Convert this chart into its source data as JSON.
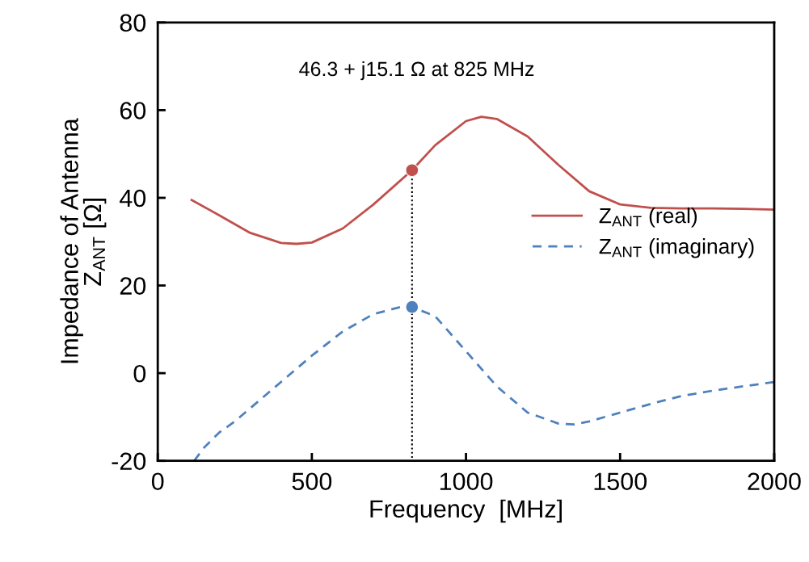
{
  "chart_data": {
    "type": "line",
    "xlabel": "Frequency  [MHz]",
    "ylabel": "Impedance of Antenna\nZ$_{ANT}$ [Ω]",
    "xlim": [
      0,
      2000
    ],
    "xticks": [
      0,
      500,
      1000,
      1500,
      2000
    ],
    "ylim": [
      -20,
      80
    ],
    "yticks": [
      -20,
      0,
      20,
      40,
      60,
      80
    ],
    "grid": false,
    "legend": "right",
    "marker": "none",
    "annotations": [
      "46.3 + j15.1 Ω at 825 MHz"
    ],
    "series": [
      {
        "name": "Z$_{ANT}$ (real)",
        "color": "#c0504d",
        "line_style": "solid",
        "x": [
          110,
          200,
          300,
          400,
          450,
          500,
          600,
          700,
          825,
          900,
          1000,
          1050,
          1100,
          1200,
          1300,
          1400,
          1500,
          1600,
          1700,
          1800,
          1900,
          2000
        ],
        "values": [
          39.5,
          36,
          32,
          29.7,
          29.5,
          29.8,
          33,
          38.5,
          46.3,
          52,
          57.5,
          58.5,
          58,
          54,
          47.5,
          41.5,
          38.5,
          37.7,
          37.6,
          37.6,
          37.5,
          37.3
        ]
      },
      {
        "name": "Z$_{ANT}$ (imaginary)",
        "color": "#4f81bd",
        "line_style": "dashed",
        "x": [
          118,
          150,
          200,
          250,
          300,
          400,
          500,
          600,
          700,
          800,
          825,
          900,
          1000,
          1100,
          1200,
          1300,
          1350,
          1400,
          1500,
          1600,
          1700,
          1800,
          1900,
          2000
        ],
        "values": [
          -20,
          -17,
          -13.5,
          -11,
          -8,
          -2,
          4,
          9.5,
          13.5,
          15.3,
          15.1,
          13,
          5,
          -3,
          -9,
          -11.5,
          -11.7,
          -11,
          -9,
          -7,
          -5.2,
          -4,
          -3,
          -2
        ]
      },
      {
        "color": "#000000",
        "line_style": "dotted",
        "x": [
          825,
          825
        ],
        "values": [
          46.3,
          -20
        ]
      },
      {
        "type": "scatter",
        "marker": "circle",
        "color": "#c0504d",
        "x": [
          825
        ],
        "values": [
          46.3
        ]
      },
      {
        "type": "scatter",
        "marker": "circle",
        "color": "#4f81bd",
        "x": [
          825
        ],
        "values": [
          15.1
        ]
      }
    ]
  }
}
